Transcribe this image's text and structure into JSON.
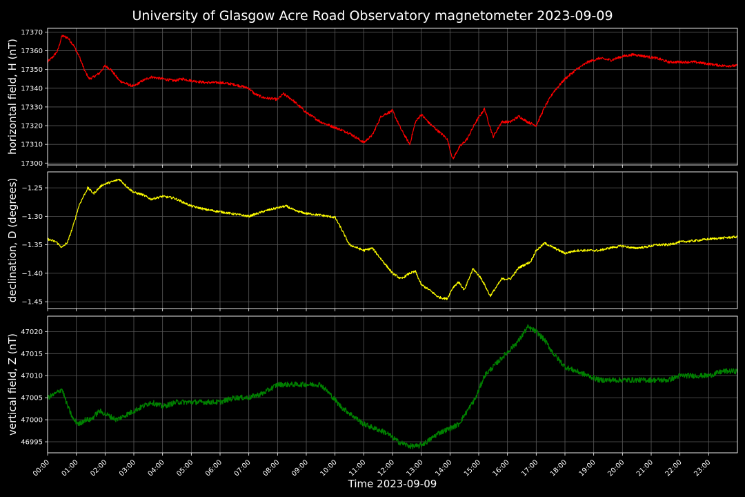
{
  "chart_data": {
    "type": "line",
    "title": "University of Glasgow Acre Road Observatory magnetometer 2023-09-09",
    "xlabel": "Time 2023-09-09",
    "x_ticks": [
      "00:00",
      "01:00",
      "02:00",
      "03:00",
      "04:00",
      "05:00",
      "06:00",
      "07:00",
      "08:00",
      "09:00",
      "10:00",
      "11:00",
      "12:00",
      "13:00",
      "14:00",
      "15:00",
      "16:00",
      "17:00",
      "18:00",
      "19:00",
      "20:00",
      "21:00",
      "22:00",
      "23:00"
    ],
    "xlim": [
      0,
      24
    ],
    "grid": true,
    "panels": [
      {
        "id": "H",
        "ylabel": "horizontal field, H (nT)",
        "color": "#ff0000",
        "ylim": [
          17299,
          17372
        ],
        "yticks": [
          17300,
          17310,
          17320,
          17330,
          17340,
          17350,
          17360,
          17370
        ],
        "ytick_labels": [
          "17300",
          "17310",
          "17320",
          "17330",
          "17340",
          "17350",
          "17360",
          "17370"
        ],
        "noise": 0.7,
        "x": [
          0,
          0.2,
          0.35,
          0.5,
          0.7,
          0.9,
          1.1,
          1.3,
          1.45,
          1.6,
          1.8,
          2.0,
          2.2,
          2.5,
          2.8,
          3.0,
          3.3,
          3.6,
          4.0,
          4.4,
          4.7,
          5.0,
          5.5,
          6.0,
          6.5,
          7.0,
          7.2,
          7.5,
          8.0,
          8.2,
          8.5,
          9.0,
          9.5,
          10.0,
          10.5,
          11.0,
          11.3,
          11.6,
          12.0,
          12.3,
          12.6,
          12.8,
          13.0,
          13.3,
          13.6,
          13.9,
          14.1,
          14.3,
          14.6,
          14.9,
          15.2,
          15.5,
          15.8,
          16.1,
          16.4,
          16.7,
          17.0,
          17.3,
          17.6,
          18.0,
          18.4,
          18.8,
          19.2,
          19.6,
          20.0,
          20.4,
          20.8,
          21.2,
          21.6,
          22.0,
          22.5,
          23.0,
          23.5,
          24.0
        ],
        "y": [
          17354,
          17357,
          17360,
          17368,
          17367,
          17363,
          17357,
          17349,
          17345,
          17346,
          17348,
          17352,
          17350,
          17344,
          17342,
          17341,
          17344,
          17346,
          17345,
          17344,
          17345,
          17344,
          17343,
          17343,
          17342,
          17340,
          17337,
          17335,
          17334,
          17337,
          17334,
          17327,
          17322,
          17319,
          17316,
          17311,
          17315,
          17325,
          17328,
          17318,
          17310,
          17322,
          17326,
          17321,
          17317,
          17313,
          17302,
          17308,
          17313,
          17322,
          17329,
          17314,
          17322,
          17322,
          17325,
          17322,
          17320,
          17330,
          17338,
          17345,
          17350,
          17354,
          17356,
          17355,
          17357,
          17358,
          17357,
          17356,
          17354,
          17354,
          17354,
          17353,
          17352,
          17352
        ]
      },
      {
        "id": "D",
        "ylabel": "declination, D (degrees)",
        "color": "#ffff00",
        "ylim": [
          -1.462,
          -1.222
        ],
        "yticks": [
          -1.45,
          -1.4,
          -1.35,
          -1.3,
          -1.25
        ],
        "ytick_labels": [
          "−1.45",
          "−1.40",
          "−1.35",
          "−1.30",
          "−1.25"
        ],
        "noise": 0.002,
        "x": [
          0,
          0.3,
          0.5,
          0.7,
          0.9,
          1.1,
          1.4,
          1.6,
          1.9,
          2.2,
          2.5,
          2.8,
          3.0,
          3.3,
          3.6,
          4.0,
          4.4,
          4.7,
          5.0,
          5.5,
          6.0,
          6.5,
          7.0,
          7.3,
          7.6,
          8.0,
          8.3,
          8.6,
          9.0,
          9.5,
          10.0,
          10.2,
          10.5,
          11.0,
          11.3,
          11.6,
          12.0,
          12.3,
          12.6,
          12.8,
          13.0,
          13.3,
          13.6,
          13.9,
          14.1,
          14.3,
          14.5,
          14.8,
          15.1,
          15.4,
          15.8,
          16.1,
          16.4,
          16.8,
          17.0,
          17.3,
          17.6,
          18.0,
          18.4,
          18.8,
          19.2,
          19.6,
          20.0,
          20.4,
          20.8,
          21.2,
          21.6,
          22.0,
          22.5,
          23.0,
          23.5,
          24.0
        ],
        "y": [
          -1.34,
          -1.345,
          -1.355,
          -1.345,
          -1.315,
          -1.28,
          -1.25,
          -1.26,
          -1.245,
          -1.24,
          -1.235,
          -1.25,
          -1.258,
          -1.262,
          -1.27,
          -1.265,
          -1.268,
          -1.275,
          -1.282,
          -1.288,
          -1.292,
          -1.296,
          -1.3,
          -1.295,
          -1.29,
          -1.285,
          -1.282,
          -1.29,
          -1.295,
          -1.298,
          -1.302,
          -1.32,
          -1.35,
          -1.36,
          -1.356,
          -1.375,
          -1.4,
          -1.41,
          -1.4,
          -1.397,
          -1.42,
          -1.43,
          -1.442,
          -1.445,
          -1.425,
          -1.415,
          -1.43,
          -1.392,
          -1.41,
          -1.44,
          -1.41,
          -1.41,
          -1.39,
          -1.38,
          -1.36,
          -1.347,
          -1.355,
          -1.365,
          -1.36,
          -1.36,
          -1.36,
          -1.355,
          -1.352,
          -1.356,
          -1.354,
          -1.35,
          -1.35,
          -1.345,
          -1.343,
          -1.34,
          -1.338,
          -1.336
        ]
      },
      {
        "id": "Z",
        "ylabel": "vertical field, Z (nT)",
        "color": "#008000",
        "ylim": [
          46992.5,
          47023.5
        ],
        "yticks": [
          46995,
          47000,
          47005,
          47010,
          47015,
          47020
        ],
        "ytick_labels": [
          "46995",
          "47000",
          "47005",
          "47010",
          "47015",
          "47020"
        ],
        "noise": 0.6,
        "x": [
          0,
          0.3,
          0.5,
          0.7,
          0.9,
          1.1,
          1.3,
          1.5,
          1.8,
          2.1,
          2.4,
          2.7,
          3.0,
          3.3,
          3.6,
          4.0,
          4.5,
          5.0,
          5.5,
          6.0,
          6.5,
          7.0,
          7.5,
          8.0,
          8.5,
          9.0,
          9.5,
          9.8,
          10.2,
          10.6,
          11.0,
          11.4,
          11.8,
          12.2,
          12.6,
          12.9,
          13.2,
          13.6,
          14.0,
          14.3,
          14.6,
          14.9,
          15.2,
          15.5,
          15.8,
          16.1,
          16.4,
          16.7,
          17.0,
          17.3,
          17.6,
          18.0,
          18.4,
          18.8,
          19.2,
          19.6,
          20.0,
          20.4,
          20.8,
          21.2,
          21.6,
          22.0,
          22.5,
          23.0,
          23.5,
          24.0
        ],
        "y": [
          47005,
          47006,
          47007,
          47003,
          47000,
          46999,
          47000,
          47000,
          47002,
          47001,
          47000,
          47001,
          47002,
          47003,
          47004,
          47003,
          47004,
          47004,
          47004,
          47004,
          47005,
          47005,
          47006,
          47008,
          47008,
          47008,
          47008,
          47006,
          47003,
          47001,
          46999,
          46998,
          46997,
          46995,
          46994,
          46994,
          46995,
          46997,
          46998,
          46999,
          47002,
          47005,
          47010,
          47012,
          47014,
          47016,
          47018,
          47021,
          47020,
          47018,
          47015,
          47012,
          47011,
          47010,
          47009,
          47009,
          47009,
          47009,
          47009,
          47009,
          47009,
          47010,
          47010,
          47010,
          47011,
          47011
        ]
      }
    ]
  }
}
